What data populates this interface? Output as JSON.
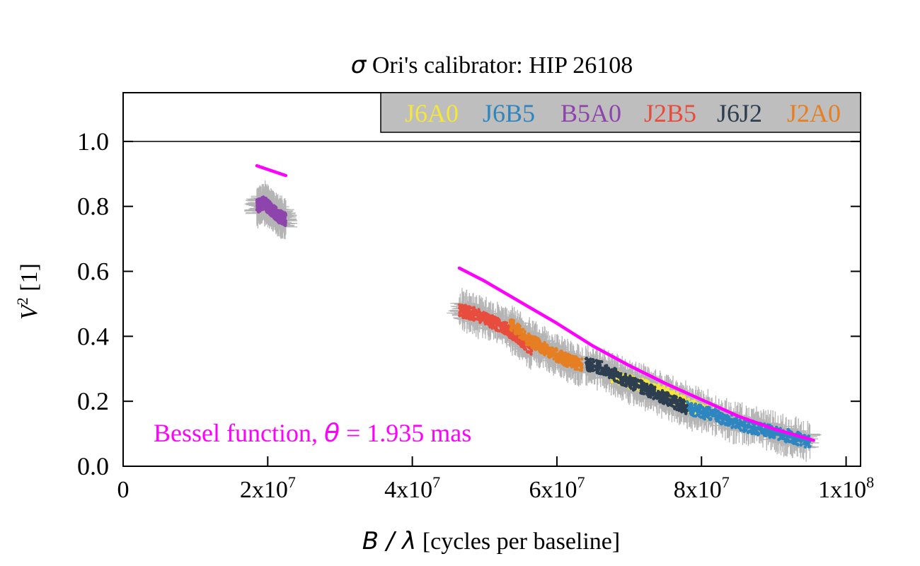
{
  "chart_data": {
    "type": "scatter",
    "title_symbol": "σ",
    "title_text": " Ori's calibrator: HIP 26108",
    "xlabel_symbol": "B / λ",
    "xlabel_text": " [cycles per baseline]",
    "ylabel_symbol": "V",
    "ylabel_sup": "2",
    "ylabel_text": " [1]",
    "xlim": [
      0,
      102000000
    ],
    "ylim": [
      0,
      1.15
    ],
    "reference_line": 1.0,
    "x_ticks": [
      {
        "value": 0,
        "base": "0",
        "exp": ""
      },
      {
        "value": 20000000,
        "base": "2x10",
        "exp": "7"
      },
      {
        "value": 40000000,
        "base": "4x10",
        "exp": "7"
      },
      {
        "value": 60000000,
        "base": "6x10",
        "exp": "7"
      },
      {
        "value": 80000000,
        "base": "8x10",
        "exp": "7"
      },
      {
        "value": 100000000,
        "base": "1x10",
        "exp": "8"
      }
    ],
    "y_ticks": [
      {
        "value": 0.0,
        "label": "0.0"
      },
      {
        "value": 0.2,
        "label": "0.2"
      },
      {
        "value": 0.4,
        "label": "0.4"
      },
      {
        "value": 0.6,
        "label": "0.6"
      },
      {
        "value": 0.8,
        "label": "0.8"
      },
      {
        "value": 1.0,
        "label": "1.0"
      }
    ],
    "legend_position": "top-right",
    "legend_background": "#bebebe",
    "series": [
      {
        "name": "J6A0",
        "color": "#f5e63c",
        "x": [
          67500000,
          70000000,
          72500000,
          75000000,
          78000000,
          81000000
        ],
        "y": [
          0.28,
          0.26,
          0.245,
          0.225,
          0.19,
          0.165
        ]
      },
      {
        "name": "J6B5",
        "color": "#2e86c1",
        "x": [
          78000000,
          82000000,
          86000000,
          90000000,
          95000000
        ],
        "y": [
          0.18,
          0.155,
          0.125,
          0.105,
          0.075
        ]
      },
      {
        "name": "B5A0",
        "color": "#8e44ad",
        "x": [
          18500000,
          19500000,
          20500000,
          21500000,
          22500000
        ],
        "y": [
          0.8,
          0.81,
          0.79,
          0.77,
          0.76
        ]
      },
      {
        "name": "J2B5",
        "color": "#e74c3c",
        "x": [
          46500000,
          48500000,
          50500000,
          52500000,
          54500000,
          56500000
        ],
        "y": [
          0.48,
          0.47,
          0.45,
          0.43,
          0.4,
          0.36
        ]
      },
      {
        "name": "J6J2",
        "color": "#2c3e50",
        "x": [
          64000000,
          66500000,
          69000000,
          72000000,
          75000000,
          78000000
        ],
        "y": [
          0.315,
          0.3,
          0.27,
          0.24,
          0.21,
          0.18
        ]
      },
      {
        "name": "J2A0",
        "color": "#e67e22",
        "x": [
          53500000,
          56000000,
          58500000,
          61000000,
          63500000
        ],
        "y": [
          0.44,
          0.39,
          0.36,
          0.33,
          0.31
        ]
      }
    ],
    "model": {
      "color": "#ff00ff",
      "label_text": "Bessel function, ",
      "label_symbol": "θ",
      "label_value": " = 1.935 mas",
      "segments": [
        {
          "x": [
            18500000,
            22500000
          ],
          "y": [
            0.925,
            0.895
          ]
        },
        {
          "x": [
            46500000,
            50000000,
            55000000,
            60000000,
            65000000,
            70000000,
            75000000,
            80000000,
            85000000,
            90000000,
            95500000
          ],
          "y": [
            0.61,
            0.57,
            0.505,
            0.44,
            0.37,
            0.31,
            0.255,
            0.205,
            0.155,
            0.115,
            0.08
          ]
        }
      ]
    }
  }
}
